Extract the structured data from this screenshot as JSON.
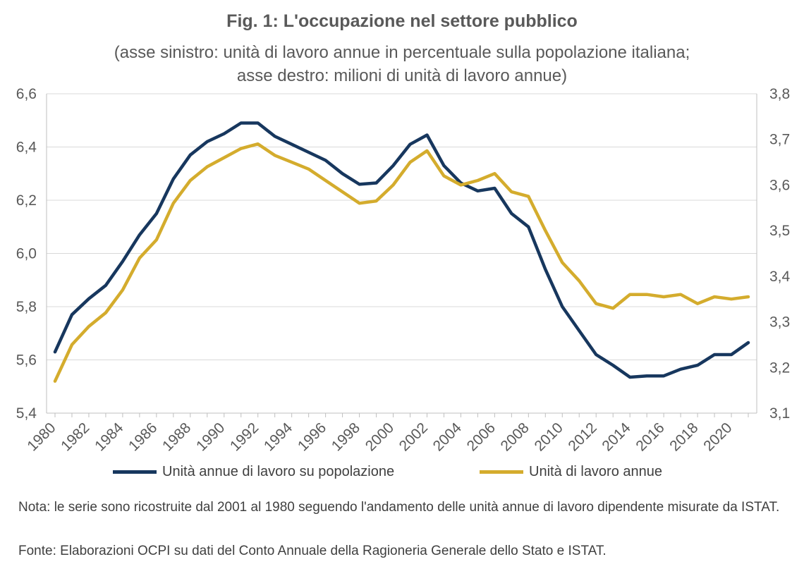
{
  "title": "Fig. 1: L'occupazione nel settore pubblico",
  "subtitle_line1": "(asse sinistro: unità di lavoro annue in percentuale sulla popolazione italiana;",
  "subtitle_line2": "asse destro: milioni di unità di lavoro annue)",
  "note": "Nota: le serie sono ricostruite dal 2001 al 1980 seguendo l'andamento delle unità annue di lavoro dipendente misurate da ISTAT.",
  "source": "Fonte: Elaborazioni OCPI su dati del Conto Annuale della Ragioneria Generale dello Stato e ISTAT.",
  "chart_data": {
    "type": "line",
    "grid": true,
    "legend_position": "bottom",
    "x": [
      1980,
      1981,
      1982,
      1983,
      1984,
      1985,
      1986,
      1987,
      1988,
      1989,
      1990,
      1991,
      1992,
      1993,
      1994,
      1995,
      1996,
      1997,
      1998,
      1999,
      2000,
      2001,
      2002,
      2003,
      2004,
      2005,
      2006,
      2007,
      2008,
      2009,
      2010,
      2011,
      2012,
      2013,
      2014,
      2015,
      2016,
      2017,
      2018,
      2019,
      2020,
      2021
    ],
    "x_tick_labels": [
      "1980",
      "1982",
      "1984",
      "1986",
      "1988",
      "1990",
      "1992",
      "1994",
      "1996",
      "1998",
      "2000",
      "2002",
      "2004",
      "2006",
      "2008",
      "2010",
      "2012",
      "2014",
      "2016",
      "2018",
      "2020"
    ],
    "y_left": {
      "range": [
        5.4,
        6.6
      ],
      "ticks": [
        "5,4",
        "5,6",
        "5,8",
        "6,0",
        "6,2",
        "6,4",
        "6,6"
      ]
    },
    "y_right": {
      "range": [
        3.1,
        3.8
      ],
      "ticks": [
        "3,1",
        "3,2",
        "3,3",
        "3,4",
        "3,5",
        "3,6",
        "3,7",
        "3,8"
      ]
    },
    "series": [
      {
        "name": "Unità annue di lavoro su popolazione",
        "axis": "left",
        "color": "#17375e",
        "values": [
          5.63,
          5.77,
          5.83,
          5.88,
          5.97,
          6.07,
          6.15,
          6.28,
          6.37,
          6.42,
          6.45,
          6.49,
          6.49,
          6.44,
          6.41,
          6.38,
          6.35,
          6.3,
          6.26,
          6.265,
          6.33,
          6.41,
          6.445,
          6.33,
          6.265,
          6.235,
          6.245,
          6.15,
          6.1,
          5.94,
          5.8,
          5.71,
          5.62,
          5.58,
          5.535,
          5.54,
          5.54,
          5.565,
          5.58,
          5.62,
          5.62,
          5.665
        ]
      },
      {
        "name": "Unità di lavoro annue",
        "axis": "right",
        "color": "#d4ac2d",
        "values": [
          3.17,
          3.25,
          3.29,
          3.32,
          3.37,
          3.44,
          3.48,
          3.56,
          3.61,
          3.64,
          3.66,
          3.68,
          3.69,
          3.665,
          3.65,
          3.635,
          3.61,
          3.585,
          3.56,
          3.565,
          3.6,
          3.65,
          3.675,
          3.62,
          3.6,
          3.61,
          3.625,
          3.585,
          3.575,
          3.5,
          3.43,
          3.39,
          3.34,
          3.33,
          3.36,
          3.36,
          3.355,
          3.36,
          3.34,
          3.355,
          3.35,
          3.355
        ]
      }
    ]
  }
}
